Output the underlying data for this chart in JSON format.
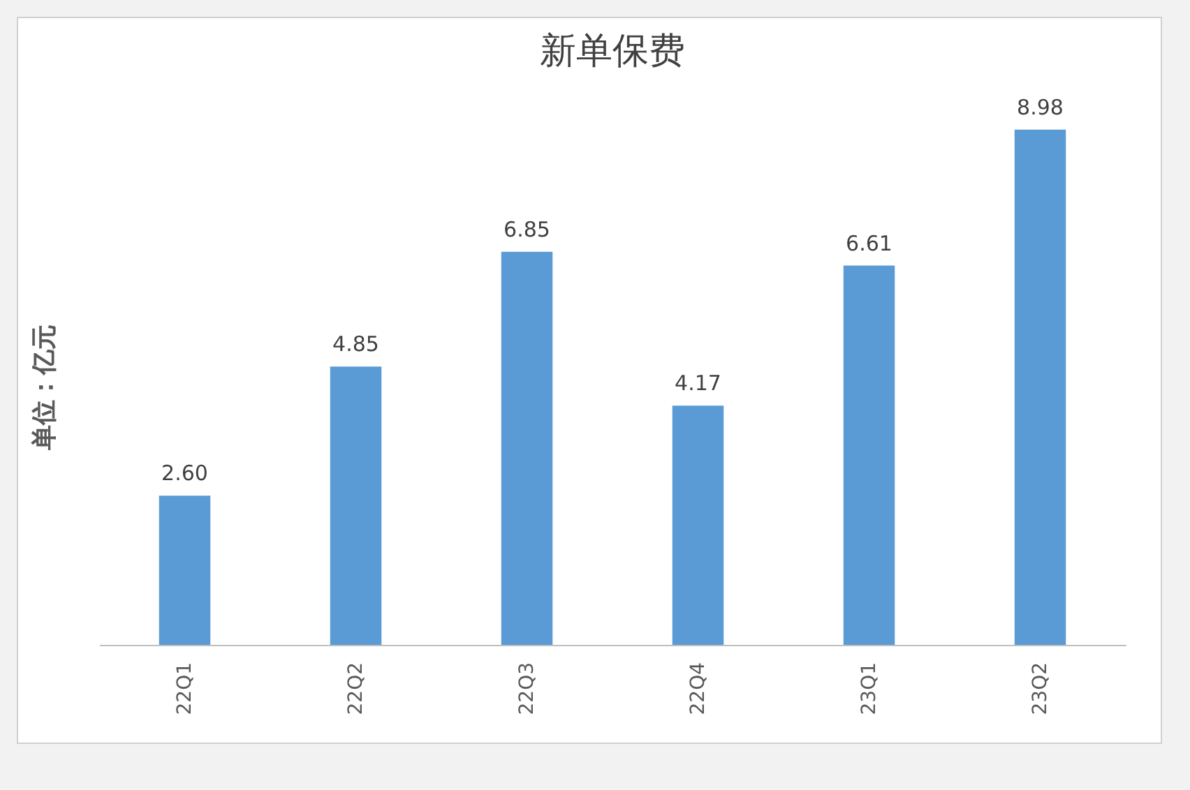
{
  "chart_data": {
    "type": "bar",
    "title": "新单保费",
    "ylabel": "单位：亿元",
    "categories": [
      "22Q1",
      "22Q2",
      "22Q3",
      "22Q4",
      "23Q1",
      "23Q2"
    ],
    "values": [
      2.6,
      4.85,
      6.85,
      4.17,
      6.61,
      8.98
    ],
    "value_labels": [
      "2.60",
      "4.85",
      "6.85",
      "4.17",
      "6.61",
      "8.98"
    ],
    "color": "#5b9bd5"
  }
}
